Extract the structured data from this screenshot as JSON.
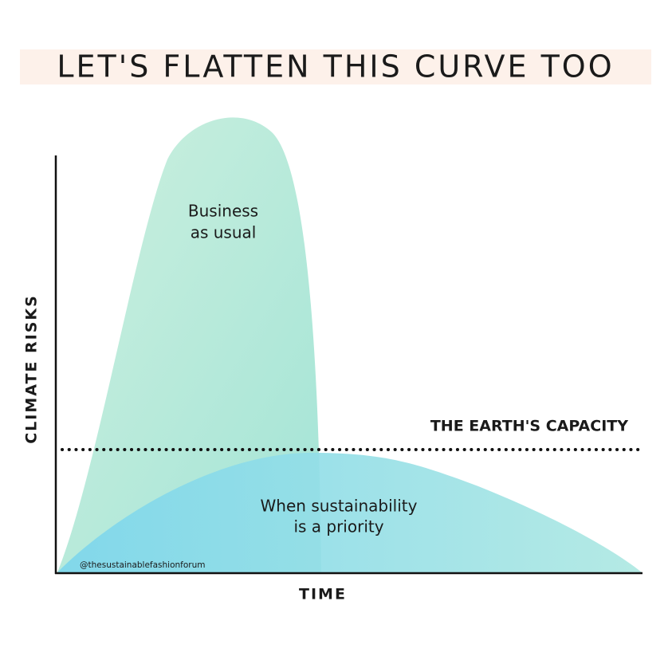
{
  "header": {
    "title": "LET'S FLATTEN THIS CURVE TOO"
  },
  "axes": {
    "y_label": "CLIMATE RISKS",
    "x_label": "TIME"
  },
  "curves": [
    {
      "label_lines": [
        "Business",
        "as usual"
      ]
    },
    {
      "label_lines": [
        "When sustainability",
        "is a priority"
      ]
    }
  ],
  "capacity_label": "THE EARTH'S CAPACITY",
  "watermark": "@thesustainablefashionforum"
}
